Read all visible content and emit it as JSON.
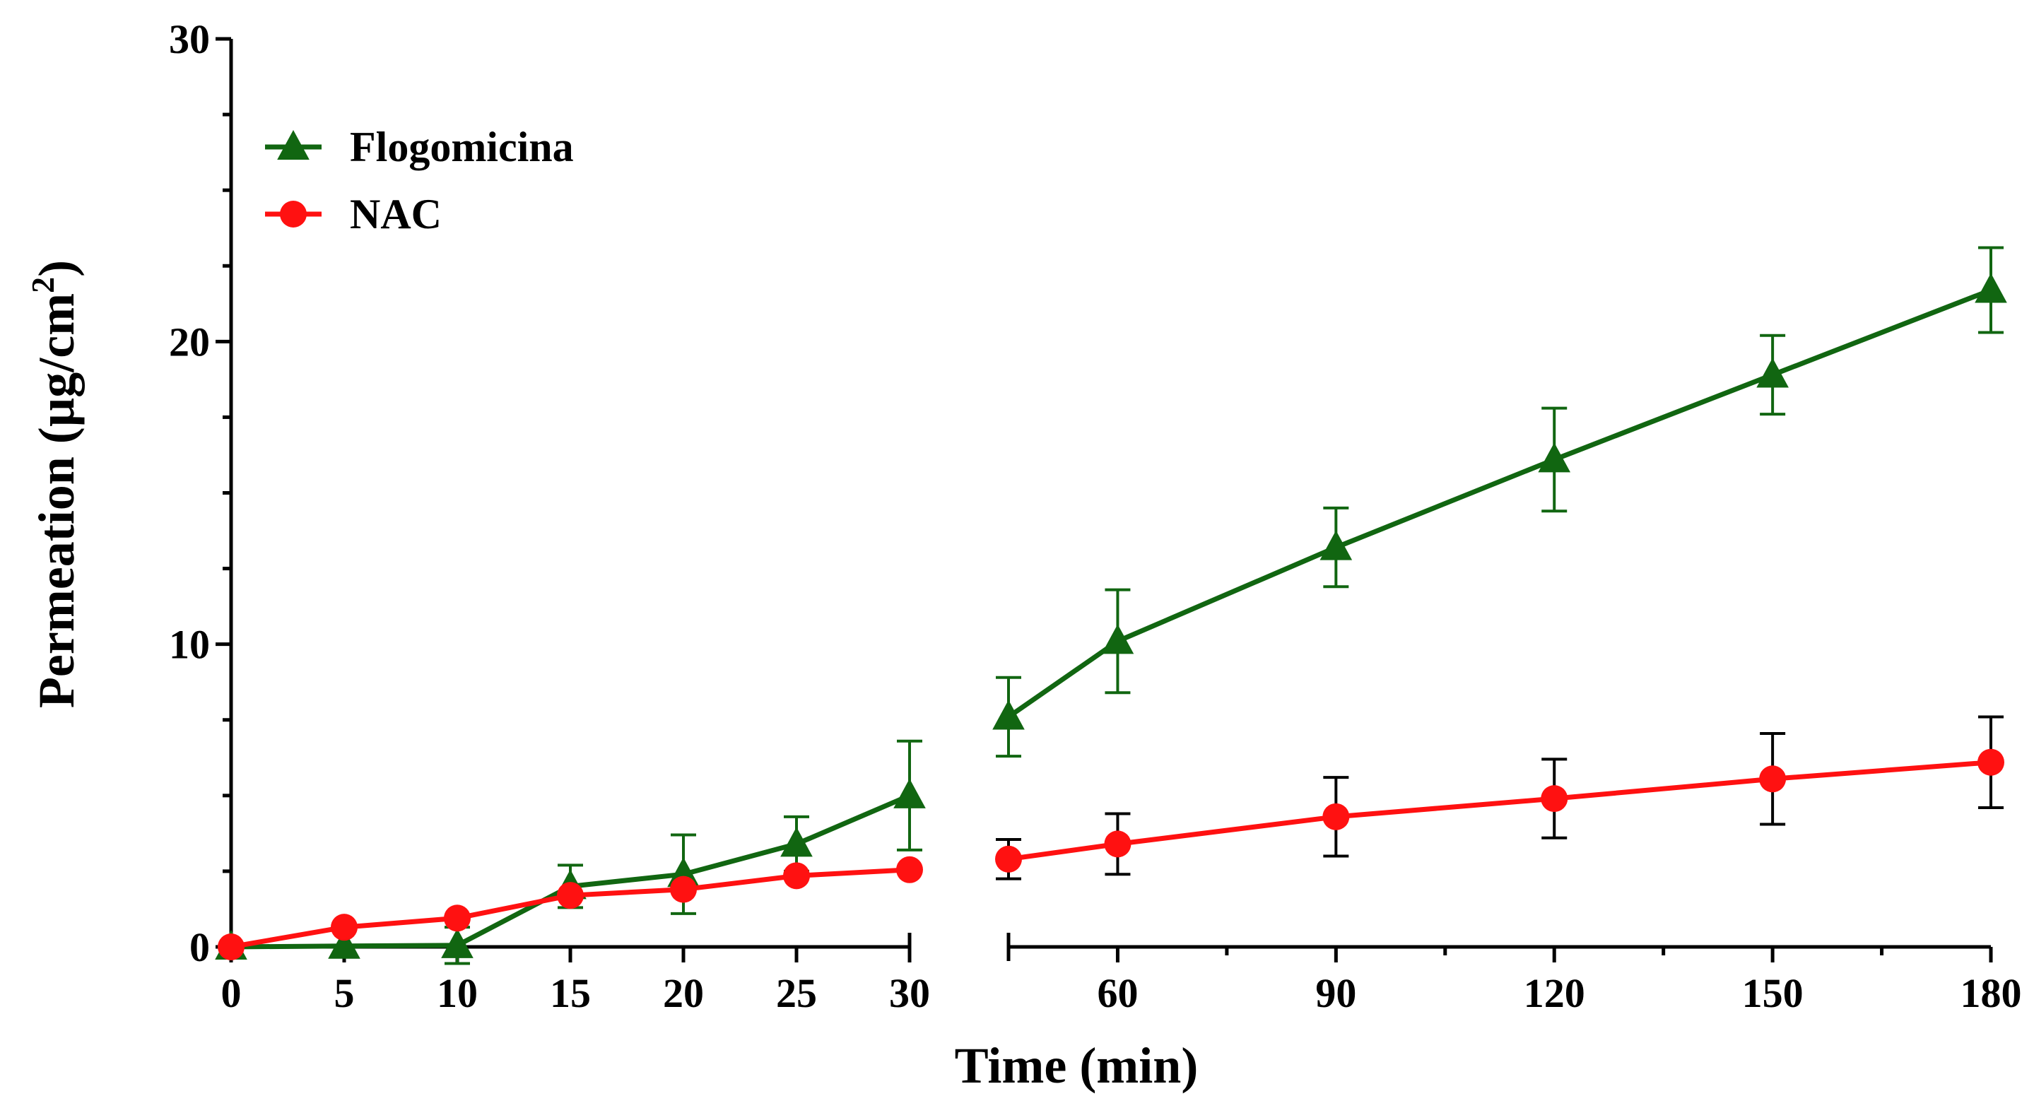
{
  "chart_data": {
    "type": "line",
    "title": "",
    "xlabel": "Time (min)",
    "ylabel": "Permeation (µg/cm",
    "ylabel_superscript": "2",
    "ylabel_close": ")",
    "ylim": [
      0,
      30
    ],
    "y_ticks": [
      0,
      10,
      20,
      30
    ],
    "x_segments": [
      {
        "range": [
          0,
          30
        ],
        "ticks": [
          0,
          5,
          10,
          15,
          20,
          25,
          30
        ]
      },
      {
        "range": [
          45,
          180
        ],
        "ticks": [
          60,
          90,
          120,
          150,
          180
        ]
      }
    ],
    "axis_break": true,
    "grid": false,
    "legend_position": "top-left",
    "series": [
      {
        "name": "Flogomicina",
        "color": "#116611",
        "marker": "triangle",
        "x": [
          0,
          5,
          10,
          15,
          20,
          25,
          30,
          45,
          60,
          90,
          120,
          150,
          180
        ],
        "values": [
          0.0,
          0.03,
          0.05,
          2.0,
          2.4,
          3.4,
          5.0,
          7.6,
          10.1,
          13.2,
          16.1,
          18.9,
          21.7
        ],
        "errors": [
          0.0,
          0.0,
          0.6,
          0.7,
          1.3,
          0.9,
          1.8,
          1.3,
          1.7,
          1.3,
          1.7,
          1.3,
          1.4
        ]
      },
      {
        "name": "NAC",
        "color": "#ff1111",
        "marker": "circle",
        "x": [
          0,
          5,
          10,
          15,
          20,
          25,
          30,
          45,
          60,
          90,
          120,
          150,
          180
        ],
        "values": [
          0.0,
          0.65,
          0.95,
          1.7,
          1.9,
          2.35,
          2.55,
          2.9,
          3.4,
          4.3,
          4.9,
          5.55,
          6.1
        ],
        "errors": [
          0.0,
          0.0,
          0.0,
          0.0,
          0.0,
          0.0,
          0.0,
          0.65,
          1.0,
          1.3,
          1.3,
          1.5,
          1.5
        ]
      }
    ]
  }
}
